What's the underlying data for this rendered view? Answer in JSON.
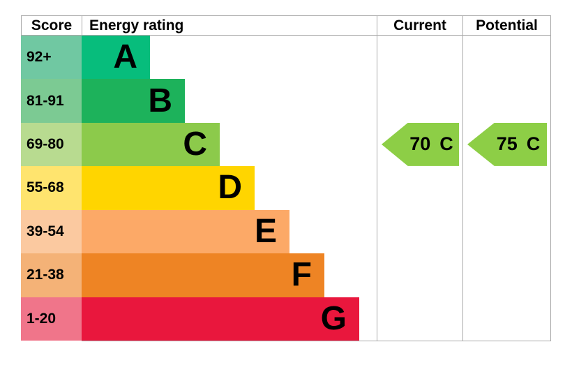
{
  "chart_data": {
    "type": "bar",
    "orientation": "horizontal",
    "title": "Energy rating",
    "columns": [
      "Score",
      "Energy rating",
      "Current",
      "Potential"
    ],
    "bands": [
      {
        "letter": "A",
        "score_range": "92+"
      },
      {
        "letter": "B",
        "score_range": "81-91"
      },
      {
        "letter": "C",
        "score_range": "69-80"
      },
      {
        "letter": "D",
        "score_range": "55-68"
      },
      {
        "letter": "E",
        "score_range": "39-54"
      },
      {
        "letter": "F",
        "score_range": "21-38"
      },
      {
        "letter": "G",
        "score_range": "1-20"
      }
    ],
    "current": {
      "score": 70,
      "band": "C"
    },
    "potential": {
      "score": 75,
      "band": "C"
    }
  },
  "header": {
    "score": "Score",
    "energy": "Energy rating",
    "current": "Current",
    "potential": "Potential"
  },
  "bands": [
    {
      "score": "92+",
      "letter": "A",
      "color": "#07bd7c",
      "tint": "#70c8a2"
    },
    {
      "score": "81-91",
      "letter": "B",
      "color": "#1db25b",
      "tint": "#7cca93"
    },
    {
      "score": "69-80",
      "letter": "C",
      "color": "#8cca4b",
      "tint": "#b8db90"
    },
    {
      "score": "55-68",
      "letter": "D",
      "color": "#ffd500",
      "tint": "#ffe46e"
    },
    {
      "score": "39-54",
      "letter": "E",
      "color": "#fca967",
      "tint": "#fbc9a0"
    },
    {
      "score": "21-38",
      "letter": "F",
      "color": "#ee8424",
      "tint": "#f4b277"
    },
    {
      "score": "1-20",
      "letter": "G",
      "color": "#e9173d",
      "tint": "#f0758a"
    }
  ],
  "current": {
    "value": "70",
    "band": "C",
    "color": "#8dce46"
  },
  "potential": {
    "value": "75",
    "band": "C",
    "color": "#8dce46"
  },
  "style": {
    "border_color": "#a9a9a9",
    "text_color": "#000000",
    "background": "#ffffff",
    "arrow_text_color": "#000000"
  }
}
